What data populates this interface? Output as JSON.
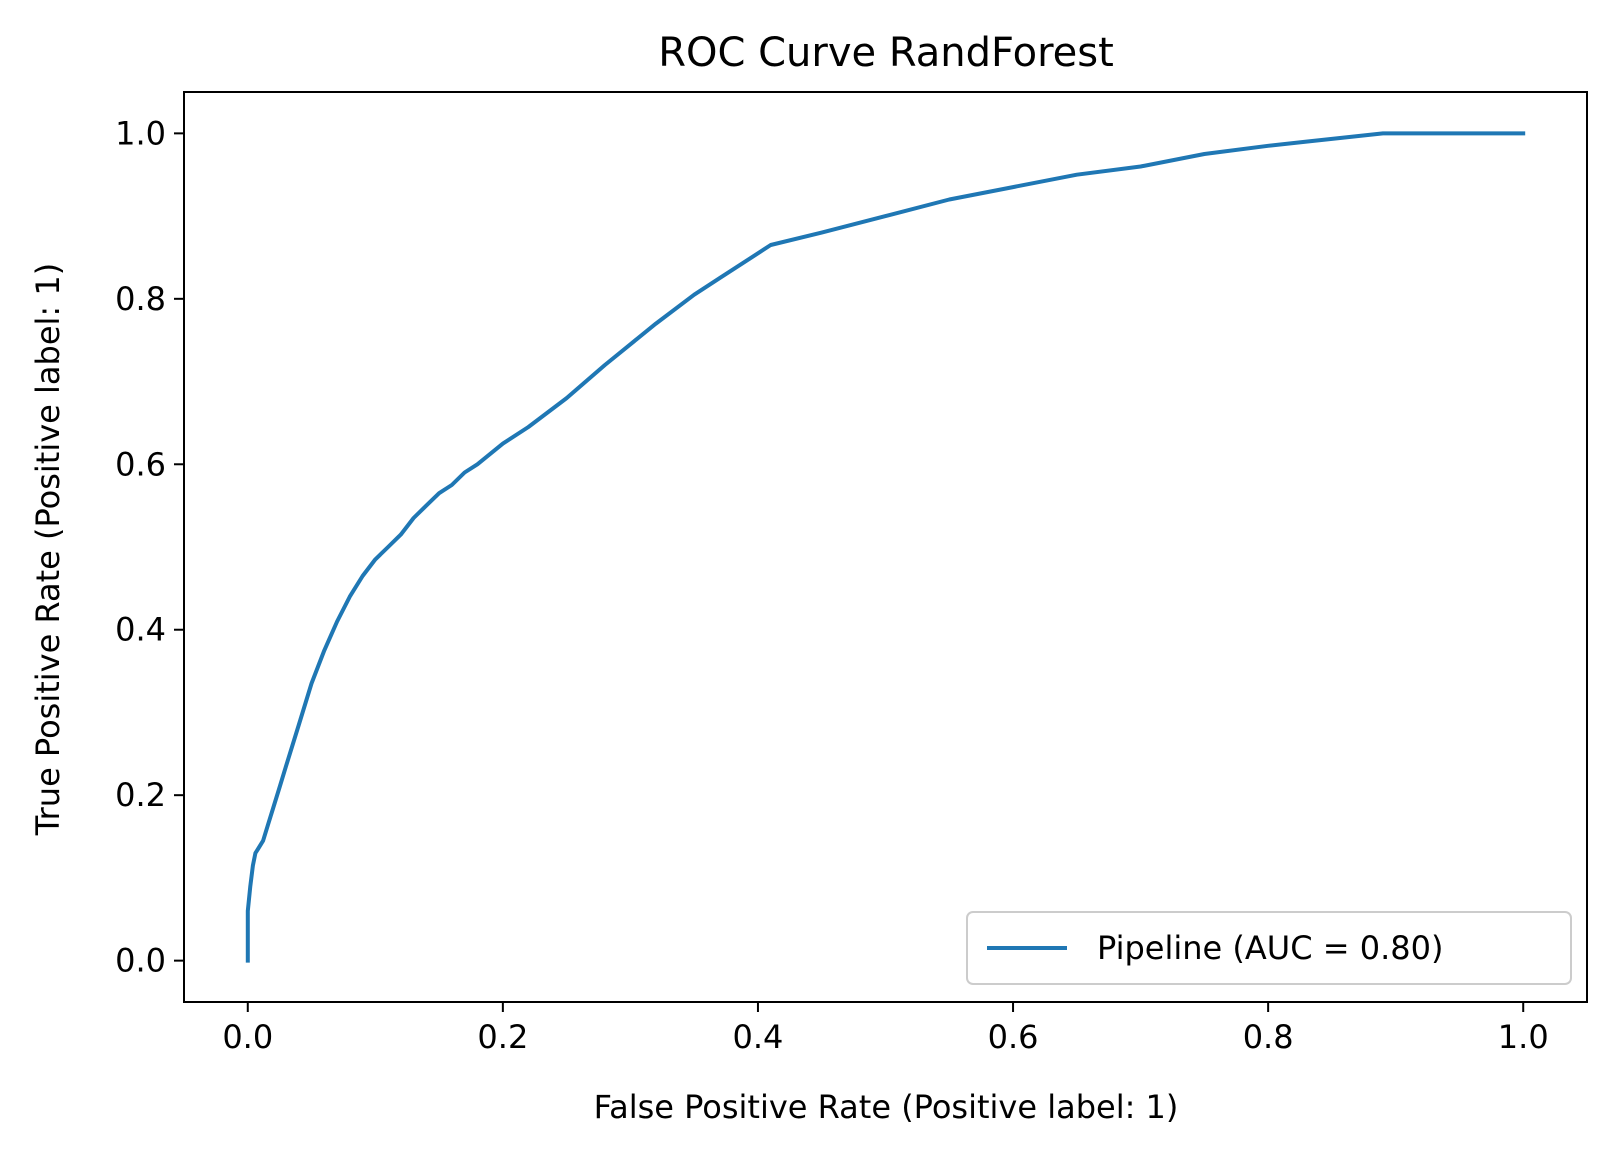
{
  "chart_data": {
    "type": "line",
    "title": "ROC Curve RandForest",
    "xlabel": "False Positive Rate (Positive label: 1)",
    "ylabel": "True Positive Rate (Positive label: 1)",
    "xlim": [
      -0.05,
      1.05
    ],
    "ylim": [
      -0.05,
      1.05
    ],
    "xticks": [
      0.0,
      0.2,
      0.4,
      0.6,
      0.8,
      1.0
    ],
    "xtick_labels": [
      "0.0",
      "0.2",
      "0.4",
      "0.6",
      "0.8",
      "1.0"
    ],
    "yticks": [
      0.0,
      0.2,
      0.4,
      0.6,
      0.8,
      1.0
    ],
    "ytick_labels": [
      "0.0",
      "0.2",
      "0.4",
      "0.6",
      "0.8",
      "1.0"
    ],
    "grid": false,
    "legend_position": "lower-right",
    "series": [
      {
        "name": "Pipeline (AUC = 0.80)",
        "color": "#1f77b4",
        "x": [
          0.0,
          0.0,
          0.002,
          0.004,
          0.006,
          0.008,
          0.012,
          0.016,
          0.02,
          0.025,
          0.03,
          0.04,
          0.05,
          0.06,
          0.07,
          0.08,
          0.09,
          0.1,
          0.11,
          0.12,
          0.13,
          0.14,
          0.15,
          0.16,
          0.17,
          0.18,
          0.2,
          0.22,
          0.25,
          0.28,
          0.3,
          0.32,
          0.35,
          0.37,
          0.39,
          0.41,
          0.45,
          0.5,
          0.55,
          0.6,
          0.65,
          0.7,
          0.75,
          0.8,
          0.83,
          0.86,
          0.89,
          0.95,
          1.0
        ],
        "y": [
          0.0,
          0.06,
          0.09,
          0.115,
          0.13,
          0.135,
          0.145,
          0.165,
          0.185,
          0.21,
          0.235,
          0.285,
          0.335,
          0.375,
          0.41,
          0.44,
          0.465,
          0.485,
          0.5,
          0.515,
          0.535,
          0.55,
          0.565,
          0.575,
          0.59,
          0.6,
          0.625,
          0.645,
          0.68,
          0.72,
          0.745,
          0.77,
          0.805,
          0.825,
          0.845,
          0.865,
          0.88,
          0.9,
          0.92,
          0.935,
          0.95,
          0.96,
          0.975,
          0.985,
          0.99,
          0.995,
          1.0,
          1.0,
          1.0
        ]
      }
    ]
  }
}
